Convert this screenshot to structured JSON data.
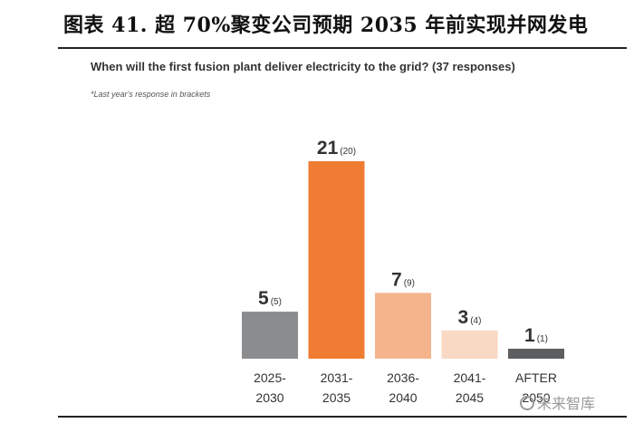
{
  "figure": {
    "title": "图表 41. 超 70%聚变公司预期 2035 年前实现并网发电"
  },
  "chart_data": {
    "type": "bar",
    "title": "When will the first fusion plant deliver electricity to the grid? (37 responses)",
    "note": "*Last year's response in brackets",
    "categories": [
      [
        "2025-",
        "2030"
      ],
      [
        "2031-",
        "2035"
      ],
      [
        "2036-",
        "2040"
      ],
      [
        "2041-",
        "2045"
      ],
      [
        "AFTER",
        "2050"
      ]
    ],
    "values": [
      5,
      21,
      7,
      3,
      1
    ],
    "previous": [
      "(5)",
      "(20)",
      "(9)",
      "(4)",
      "(1)"
    ],
    "colors": [
      "#8a8c8e",
      "#f07c33",
      "#f5b48c",
      "#f9d9c3",
      "#5d5e60"
    ],
    "xlabel": "",
    "ylabel": "",
    "ylim": [
      0,
      21
    ],
    "grid": false,
    "legend": "none"
  },
  "watermark": {
    "text": "未来智库"
  }
}
